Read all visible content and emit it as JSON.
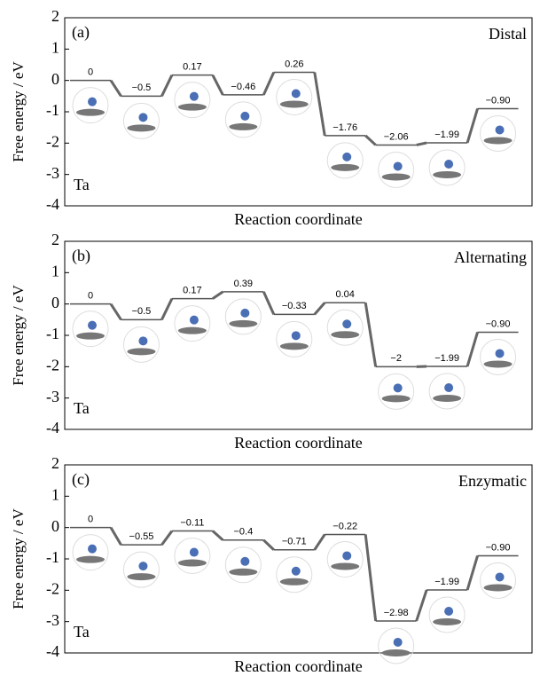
{
  "chart_data": [
    {
      "type": "step",
      "panel_label": "(a)",
      "title": "Distal",
      "annotation": "Ta",
      "ylabel": "Free energy / eV",
      "xlabel": "Reaction coordinate",
      "values": [
        0,
        -0.5,
        0.17,
        -0.46,
        0.26,
        -1.76,
        -2.06,
        -1.99,
        -0.9
      ],
      "value_labels": [
        "0",
        "−0.5",
        "0.17",
        "−0.46",
        "0.26",
        "−1.76",
        "−2.06",
        "−1.99",
        "−0.90"
      ],
      "ylim": [
        -4,
        2
      ],
      "yticks": [
        -4,
        -3,
        -2,
        -1,
        0,
        1,
        2
      ],
      "color": "#555555"
    },
    {
      "type": "step",
      "panel_label": "(b)",
      "title": "Alternating",
      "annotation": "Ta",
      "ylabel": "Free energy / eV",
      "xlabel": "Reaction coordinate",
      "values": [
        0,
        -0.5,
        0.17,
        0.39,
        -0.33,
        0.04,
        -2,
        -1.99,
        -0.9
      ],
      "value_labels": [
        "0",
        "−0.5",
        "0.17",
        "0.39",
        "−0.33",
        "0.04",
        "−2",
        "−1.99",
        "−0.90"
      ],
      "ylim": [
        -4,
        2
      ],
      "yticks": [
        -4,
        -3,
        -2,
        -1,
        0,
        1,
        2
      ],
      "color": "#555555"
    },
    {
      "type": "step",
      "panel_label": "(c)",
      "title": "Enzymatic",
      "annotation": "Ta",
      "ylabel": "Free energy / eV",
      "xlabel": "Reaction coordinate",
      "values": [
        0,
        -0.55,
        -0.11,
        -0.4,
        -0.71,
        -0.22,
        -2.98,
        -1.99,
        -0.9
      ],
      "value_labels": [
        "0",
        "−0.55",
        "−0.11",
        "−0.4",
        "−0.71",
        "−0.22",
        "−2.98",
        "−1.99",
        "−0.90"
      ],
      "ylim": [
        -4,
        2
      ],
      "yticks": [
        -4,
        -3,
        -2,
        -1,
        0,
        1,
        2
      ],
      "color": "#555555"
    }
  ]
}
